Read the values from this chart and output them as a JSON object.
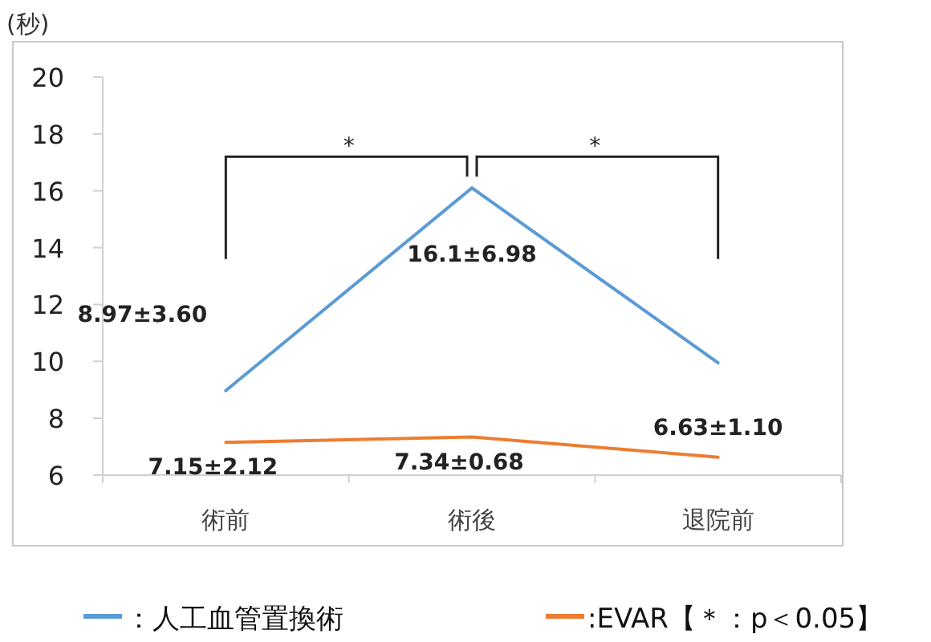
{
  "chart_data": {
    "type": "line",
    "ylabel": "(秒)",
    "categories": [
      "術前",
      "術後",
      "退院前"
    ],
    "ylim": [
      6,
      20
    ],
    "yticks": [
      6,
      8,
      10,
      12,
      14,
      16,
      18,
      20
    ],
    "grid": false,
    "legend": "bottom",
    "marker": "none",
    "series": [
      {
        "name": "：人工血管置換術",
        "color": "#5b9bd5",
        "values": [
          8.97,
          16.1,
          9.95
        ],
        "value_labels": [
          "8.97±3.60",
          "16.1±6.98",
          null
        ]
      },
      {
        "name": ":EVAR【＊：p＜0.05】",
        "color": "#ed7d31",
        "values": [
          7.15,
          7.34,
          6.63
        ],
        "value_labels": [
          "7.15±2.12",
          "7.34±0.68",
          "6.63±1.10"
        ]
      }
    ],
    "annotations": [
      "*",
      "*"
    ]
  }
}
